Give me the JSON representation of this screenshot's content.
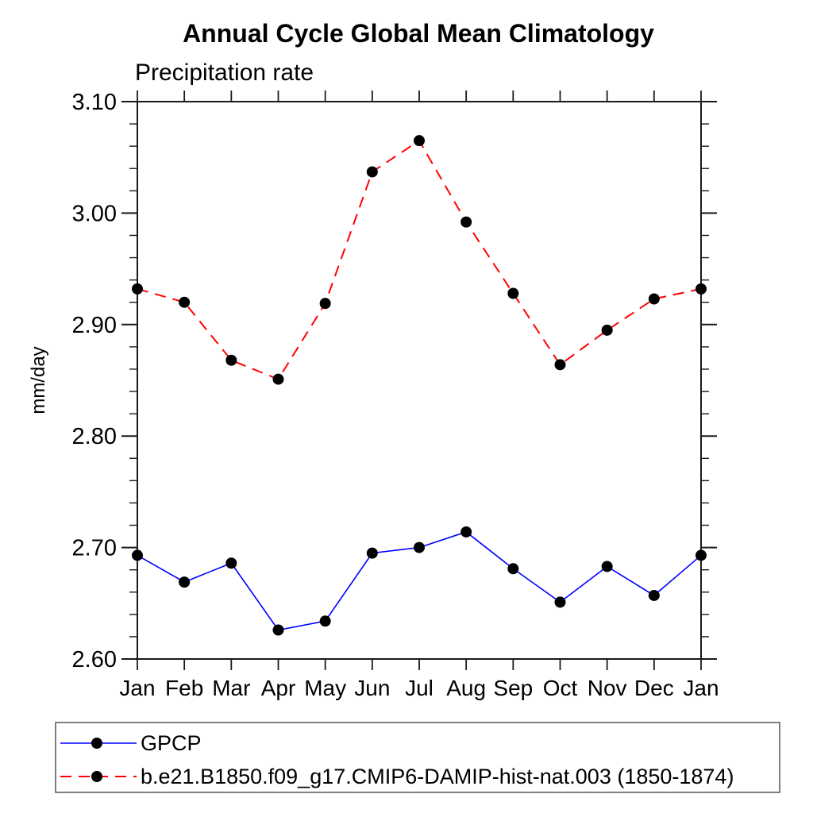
{
  "page": {
    "background": "#ffffff",
    "axis_color": "#1a1a1a",
    "marker_color": "#000000",
    "legend_border_color": "#555555"
  },
  "chart_data": {
    "type": "line",
    "title": "Annual Cycle Global Mean Climatology",
    "subtitle": "Precipitation rate",
    "ylabel": "mm/day",
    "xlabel": "",
    "categories": [
      "Jan",
      "Feb",
      "Mar",
      "Apr",
      "May",
      "Jun",
      "Jul",
      "Aug",
      "Sep",
      "Oct",
      "Nov",
      "Dec",
      "Jan"
    ],
    "ylim": [
      2.6,
      3.1
    ],
    "y_major_step": 0.1,
    "y_minor_step": 0.02,
    "y_tick_labels": [
      "2.60",
      "2.70",
      "2.80",
      "2.90",
      "3.00",
      "3.10"
    ],
    "grid": false,
    "legend_position": "bottom",
    "series": [
      {
        "name": "GPCP",
        "color": "#0000ff",
        "line_style": "solid",
        "marker": "filled-black-circle",
        "values": [
          2.693,
          2.669,
          2.686,
          2.626,
          2.634,
          2.695,
          2.7,
          2.714,
          2.681,
          2.651,
          2.683,
          2.657,
          2.693
        ]
      },
      {
        "name": "b.e21.B1850.f09_g17.CMIP6-DAMIP-hist-nat.003 (1850-1874)",
        "color": "#ff0000",
        "line_style": "dashed",
        "marker": "filled-black-circle",
        "values": [
          2.932,
          2.92,
          2.868,
          2.851,
          2.919,
          3.037,
          3.065,
          2.992,
          2.928,
          2.864,
          2.895,
          2.923,
          2.932
        ]
      }
    ]
  }
}
